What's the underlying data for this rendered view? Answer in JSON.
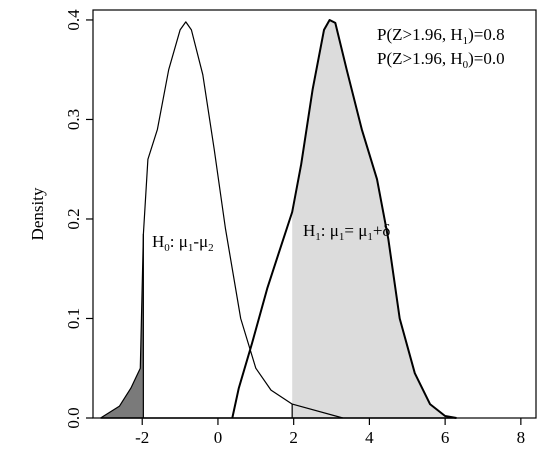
{
  "chart_data": {
    "type": "area",
    "title": "",
    "xlabel": "",
    "ylabel": "Density",
    "xlim": [
      -3.3,
      8.4
    ],
    "ylim": [
      0.0,
      0.41
    ],
    "x_ticks": [
      "-2",
      "0",
      "2",
      "4",
      "6",
      "8"
    ],
    "x_tick_values": [
      -2,
      0,
      2,
      4,
      6,
      8
    ],
    "y_ticks": [
      "0.0",
      "0.1",
      "0.2",
      "0.3",
      "0.4"
    ],
    "y_tick_values": [
      0.0,
      0.1,
      0.2,
      0.3,
      0.4
    ],
    "critical_value": 1.96,
    "series": [
      {
        "curve": "H0",
        "x": [
          -3.1,
          -2.6,
          -2.3,
          -2.05,
          -1.97,
          -1.85,
          -1.6,
          -1.3,
          -1.0,
          -0.85,
          -0.7,
          -0.4,
          -0.1,
          0.2,
          0.6,
          1.0,
          1.4,
          1.96,
          3.3
        ],
        "y": [
          0.0,
          0.012,
          0.03,
          0.05,
          0.185,
          0.26,
          0.29,
          0.35,
          0.39,
          0.398,
          0.39,
          0.345,
          0.27,
          0.19,
          0.1,
          0.05,
          0.028,
          0.014,
          0.0
        ]
      },
      {
        "curve": "H1",
        "x": [
          0.38,
          0.55,
          0.9,
          1.3,
          1.6,
          1.96,
          2.2,
          2.5,
          2.8,
          2.95,
          3.1,
          3.4,
          3.8,
          4.2,
          4.5,
          4.8,
          5.2,
          5.6,
          6.0,
          6.3
        ],
        "y": [
          0.0,
          0.03,
          0.075,
          0.13,
          0.165,
          0.207,
          0.255,
          0.33,
          0.39,
          0.4,
          0.397,
          0.35,
          0.29,
          0.24,
          0.18,
          0.1,
          0.045,
          0.014,
          0.002,
          0.0
        ]
      }
    ],
    "shaded_regions": [
      {
        "of": "H0",
        "from": -3.1,
        "to": -1.97,
        "color": "#7a7a7a"
      },
      {
        "of": "H0",
        "from": 1.96,
        "to": 3.3,
        "color": "#7a7a7a"
      },
      {
        "of": "H1",
        "from": 1.96,
        "to": 6.3,
        "color": "#dcdcdc"
      }
    ],
    "annotations": [
      {
        "id": "h0",
        "text": "H0: μ1-μ2",
        "x": -2.0,
        "y": 0.17
      },
      {
        "id": "h1",
        "text": "H1: μ1= μ1+δ",
        "x": 2.1,
        "y": 0.18
      }
    ],
    "legend_text": [
      "P(Z>1.96, H1)=0.8",
      "P(Z>1.96, H0)=0.0"
    ],
    "legend_position": "top-right"
  }
}
